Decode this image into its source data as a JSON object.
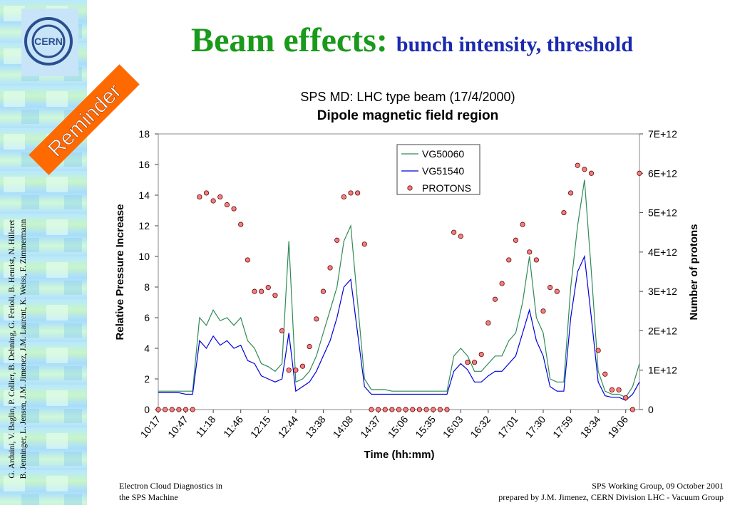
{
  "slide": {
    "title": "Beam effects:",
    "subtitle": "bunch intensity, threshold",
    "logo": "CERN",
    "badge": "Reminder",
    "credits": [
      "G. Arduini, V. Baglin, P. Collier, B. Dehning, G. Ferioli, B. Henrist, N. Hilleret",
      "B. Jenninger, L. Jensen, J.M. Jimenez, J.M. Laurent, K. Weiss, F. Zimmermann"
    ],
    "footer_left": [
      "Electron Cloud Diagnostics in",
      "the SPS Machine"
    ],
    "footer_right": [
      "SPS Working Group, 09 October 2001",
      "prepared by J.M. Jimenez, CERN Division LHC - Vacuum Group"
    ]
  },
  "chart_data": {
    "type": "line",
    "title": "SPS MD: LHC type beam (17/4/2000)",
    "subtitle": "Dipole magnetic field region",
    "xlabel": "Time (hh:mm)",
    "ylabel": "Relative Pressure Increase",
    "y2label": "Number of protons",
    "categories": [
      "10:17",
      null,
      null,
      null,
      "10:47",
      null,
      null,
      null,
      "11:18",
      null,
      null,
      null,
      "11:46",
      null,
      null,
      null,
      "12:15",
      null,
      null,
      null,
      "12:44",
      null,
      null,
      null,
      "13:38",
      null,
      null,
      null,
      "14:08",
      null,
      null,
      null,
      "14:37",
      null,
      null,
      null,
      "15:06",
      null,
      null,
      null,
      "15:35",
      null,
      null,
      null,
      "16:03",
      null,
      null,
      null,
      "16:32",
      null,
      null,
      null,
      "17:01",
      null,
      null,
      null,
      "17:30",
      null,
      null,
      null,
      "17:59",
      null,
      null,
      null,
      "18:34",
      null,
      null,
      null,
      "19:06",
      null,
      null
    ],
    "ylim": [
      0,
      18
    ],
    "yticks": [
      0,
      2,
      4,
      6,
      8,
      10,
      12,
      14,
      16,
      18
    ],
    "y2lim": [
      0,
      7000000000000.0
    ],
    "y2ticks": [
      0,
      {
        "value": 1000000000000.0,
        "label": "1E+12"
      },
      {
        "value": 2000000000000.0,
        "label": "2E+12"
      },
      {
        "value": 3000000000000.0,
        "label": "3E+12"
      },
      {
        "value": 4000000000000.0,
        "label": "4E+12"
      },
      {
        "value": 5000000000000.0,
        "label": "5E+12"
      },
      {
        "value": 6000000000000.0,
        "label": "6E+12"
      },
      {
        "value": 7000000000000.0,
        "label": "7E+12"
      }
    ],
    "legend": "upper center",
    "series": [
      {
        "name": "VG50060",
        "color": "#2e8b57",
        "values": [
          1.2,
          1.2,
          1.2,
          1.2,
          1.2,
          1.2,
          6,
          5.5,
          6.5,
          5.8,
          6,
          5.5,
          6,
          4.5,
          4,
          3,
          2.8,
          2.5,
          3,
          11,
          1.8,
          2,
          2.5,
          3.5,
          5,
          6.5,
          8,
          11,
          12,
          7,
          2,
          1.3,
          1.3,
          1.3,
          1.2,
          1.2,
          1.2,
          1.2,
          1.2,
          1.2,
          1.2,
          1.2,
          1.2,
          3.5,
          4,
          3.5,
          2.5,
          2.5,
          3,
          3.5,
          3.5,
          4.5,
          5,
          7,
          10,
          6,
          5,
          2,
          1.8,
          1.8,
          8,
          12,
          15,
          9,
          2.5,
          1.2,
          1,
          1,
          0.8,
          1.5,
          3
        ]
      },
      {
        "name": "VG51540",
        "color": "#0000dd",
        "values": [
          1.1,
          1.1,
          1.1,
          1.1,
          1,
          1,
          4.5,
          4,
          4.8,
          4.2,
          4.5,
          4,
          4.2,
          3.2,
          3,
          2.2,
          2,
          1.8,
          2,
          5,
          1.2,
          1.5,
          1.8,
          2.5,
          3.5,
          4.5,
          6,
          8,
          8.5,
          5,
          1.5,
          1,
          1,
          1,
          1,
          1,
          1,
          1,
          1,
          1,
          1,
          1,
          1,
          2.5,
          3,
          2.6,
          1.8,
          1.8,
          2.2,
          2.5,
          2.5,
          3,
          3.5,
          5,
          6.5,
          4.5,
          3.5,
          1.5,
          1.2,
          1.2,
          6,
          9,
          10,
          6,
          1.8,
          0.9,
          0.8,
          0.8,
          0.6,
          1,
          1.8
        ]
      },
      {
        "name": "PROTONS",
        "color": "#f08080",
        "axis": "y2",
        "marker": "circle",
        "values": [
          0,
          0,
          0,
          0,
          0,
          0,
          5400000000000.0,
          5500000000000.0,
          5300000000000.0,
          5400000000000.0,
          5200000000000.0,
          5100000000000.0,
          4700000000000.0,
          3800000000000.0,
          3000000000000.0,
          3000000000000.0,
          3100000000000.0,
          2900000000000.0,
          2000000000000.0,
          1000000000000.0,
          1000000000000.0,
          1100000000000.0,
          1600000000000.0,
          2300000000000.0,
          3000000000000.0,
          3600000000000.0,
          4300000000000.0,
          5400000000000.0,
          5500000000000.0,
          5500000000000.0,
          4200000000000.0,
          0,
          0,
          0,
          0,
          0,
          0,
          0,
          0,
          0,
          0,
          0,
          0,
          4500000000000.0,
          4400000000000.0,
          1200000000000.0,
          1200000000000.0,
          1400000000000.0,
          2200000000000.0,
          2800000000000.0,
          3200000000000.0,
          3800000000000.0,
          4300000000000.0,
          4700000000000.0,
          4000000000000.0,
          3800000000000.0,
          2500000000000.0,
          3100000000000.0,
          3000000000000.0,
          5000000000000.0,
          5500000000000.0,
          6200000000000.0,
          6100000000000.0,
          6000000000000.0,
          1500000000000.0,
          900000000000.0,
          500000000000.0,
          500000000000.0,
          300000000000.0,
          0,
          6000000000000.0
        ]
      }
    ]
  }
}
